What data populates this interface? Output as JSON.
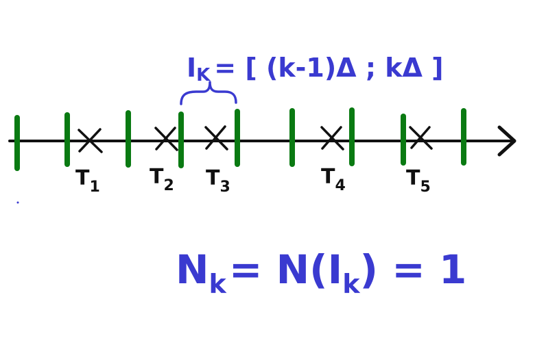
{
  "diagram": {
    "interval_formula": "I",
    "interval_formula_sub": "K",
    "interval_formula_rest": "= [ (k-1)Δ ; kΔ ]",
    "count_formula_main": "N",
    "count_formula_sub": "k",
    "count_formula_mid": "= N(I",
    "count_formula_sub2": "k",
    "count_formula_end": ") = 1",
    "event_labels": [
      {
        "main": "T",
        "sub": "1"
      },
      {
        "main": "T",
        "sub": "2"
      },
      {
        "main": "T",
        "sub": "3"
      },
      {
        "main": "T",
        "sub": "4"
      },
      {
        "main": "T",
        "sub": "5"
      }
    ],
    "colors": {
      "axis": "#111111",
      "interval_mark": "#0a7a12",
      "annotation": "#3a3ad0",
      "event_mark": "#111111"
    }
  }
}
